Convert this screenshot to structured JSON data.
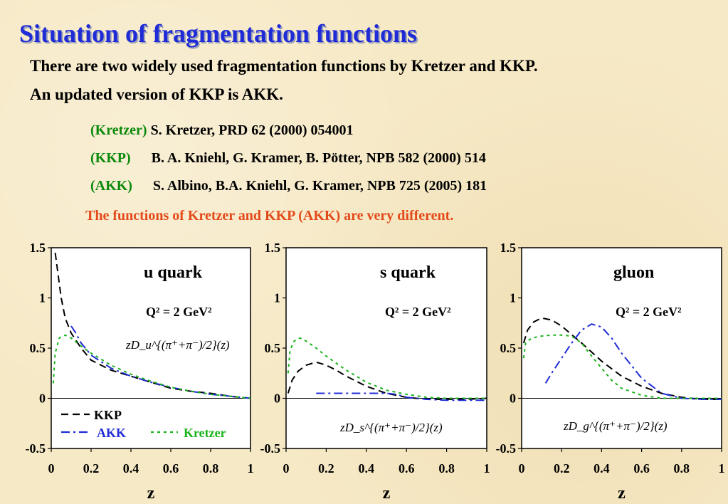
{
  "slide": {
    "title": "Situation of fragmentation functions",
    "intro_line1": "There are two widely used fragmentation functions by Kretzer and KKP.",
    "intro_line2": "An updated version of KKP is AKK.",
    "references": [
      {
        "key": "(Kretzer)",
        "text": "S. Kretzer, PRD 62 (2000) 054001"
      },
      {
        "key": "(KKP)",
        "text": "B. A. Kniehl, G. Kramer, B. Pötter, NPB 582 (2000) 514"
      },
      {
        "key": "(AKK)",
        "text": "S. Albino, B.A. Kniehl, G. Kramer, NPB 725 (2005) 181"
      }
    ],
    "note": "The functions of Kretzer and KKP (AKK) are very different."
  },
  "colors": {
    "kkp": "#000000",
    "akk": "#1f2bd6",
    "kretzer": "#19b319",
    "note": "#e34a1a",
    "title": "#1f2bd6"
  },
  "chart_data": [
    {
      "type": "line",
      "panel_label": "u quark",
      "scale_label": "Q² = 2 GeV²",
      "function_label": "zD_u^{(π⁺+π⁻)/2}(z)",
      "xlabel": "z",
      "xlim": [
        0,
        1
      ],
      "ylim": [
        -0.5,
        1.5
      ],
      "xticks": [
        "0",
        "0.2",
        "0.4",
        "0.6",
        "0.8",
        "1"
      ],
      "yticks": [
        "1.5",
        "1",
        "0.5",
        "0",
        "-0.5"
      ],
      "legend": [
        {
          "series": "KKP",
          "label": "KKP"
        },
        {
          "series": "AKK",
          "label": "AKK"
        },
        {
          "series": "Kretzer",
          "label": "Kretzer"
        }
      ],
      "series": [
        {
          "name": "KKP",
          "style": "dashed",
          "x": [
            0.02,
            0.03,
            0.04,
            0.05,
            0.07,
            0.1,
            0.15,
            0.2,
            0.3,
            0.4,
            0.5,
            0.6,
            0.7,
            0.8,
            0.9,
            1.0
          ],
          "y": [
            1.45,
            1.3,
            1.15,
            1.0,
            0.8,
            0.65,
            0.5,
            0.38,
            0.28,
            0.22,
            0.16,
            0.1,
            0.07,
            0.05,
            0.02,
            0.0
          ]
        },
        {
          "name": "AKK",
          "style": "dashdot",
          "x": [
            0.1,
            0.12,
            0.15,
            0.2,
            0.3,
            0.4,
            0.5,
            0.6,
            0.7,
            0.8,
            0.9,
            1.0
          ],
          "y": [
            0.72,
            0.66,
            0.55,
            0.43,
            0.3,
            0.22,
            0.16,
            0.11,
            0.07,
            0.04,
            0.02,
            0.0
          ]
        },
        {
          "name": "Kretzer",
          "style": "dotted",
          "x": [
            0.01,
            0.02,
            0.04,
            0.07,
            0.1,
            0.15,
            0.2,
            0.3,
            0.4,
            0.5,
            0.6,
            0.7,
            0.8,
            0.9,
            1.0
          ],
          "y": [
            0.15,
            0.45,
            0.6,
            0.63,
            0.6,
            0.52,
            0.45,
            0.33,
            0.24,
            0.17,
            0.11,
            0.07,
            0.04,
            0.02,
            0.0
          ]
        }
      ]
    },
    {
      "type": "line",
      "panel_label": "s quark",
      "scale_label": "Q² = 2 GeV²",
      "function_label": "zD_s^{(π⁺+π⁻)/2}(z)",
      "xlabel": "z",
      "xlim": [
        0,
        1
      ],
      "ylim": [
        -0.5,
        1.5
      ],
      "xticks": [
        "0",
        "0.2",
        "0.4",
        "0.6",
        "0.8",
        "1"
      ],
      "yticks": [
        "1.5",
        "1",
        "0.5",
        "0",
        "-0.5"
      ],
      "series": [
        {
          "name": "KKP",
          "style": "dashed",
          "x": [
            0.01,
            0.03,
            0.06,
            0.1,
            0.15,
            0.2,
            0.25,
            0.3,
            0.4,
            0.5,
            0.6,
            0.7,
            0.8,
            0.9,
            1.0
          ],
          "y": [
            0.05,
            0.18,
            0.27,
            0.33,
            0.36,
            0.33,
            0.28,
            0.22,
            0.12,
            0.05,
            0.01,
            -0.01,
            -0.01,
            -0.01,
            0.0
          ]
        },
        {
          "name": "AKK",
          "style": "dashdot",
          "x": [
            0.15,
            0.2,
            0.3,
            0.4,
            0.5,
            0.55,
            0.6,
            0.7,
            0.8,
            0.9,
            1.0
          ],
          "y": [
            0.05,
            0.05,
            0.05,
            0.05,
            0.05,
            0.04,
            0.01,
            -0.01,
            -0.02,
            -0.02,
            -0.02
          ]
        },
        {
          "name": "Kretzer",
          "style": "dotted",
          "x": [
            0.01,
            0.02,
            0.04,
            0.07,
            0.1,
            0.15,
            0.2,
            0.3,
            0.4,
            0.5,
            0.6,
            0.7,
            0.8,
            0.9,
            1.0
          ],
          "y": [
            0.25,
            0.48,
            0.57,
            0.6,
            0.57,
            0.5,
            0.42,
            0.28,
            0.16,
            0.08,
            0.04,
            0.01,
            0.0,
            0.0,
            0.0
          ]
        }
      ]
    },
    {
      "type": "line",
      "panel_label": "gluon",
      "scale_label": "Q² = 2 GeV²",
      "function_label": "zD_g^{(π⁺+π⁻)/2}(z)",
      "xlabel": "z",
      "xlim": [
        0,
        1
      ],
      "ylim": [
        -0.5,
        1.5
      ],
      "xticks": [
        "0",
        "0.2",
        "0.4",
        "0.6",
        "0.8",
        "1"
      ],
      "yticks": [
        "1.5",
        "1",
        "0.5",
        "0",
        "-0.5"
      ],
      "series": [
        {
          "name": "KKP",
          "style": "dashed",
          "x": [
            0.01,
            0.03,
            0.06,
            0.1,
            0.15,
            0.2,
            0.3,
            0.4,
            0.5,
            0.6,
            0.7,
            0.8,
            0.9,
            1.0
          ],
          "y": [
            0.55,
            0.68,
            0.76,
            0.8,
            0.78,
            0.72,
            0.55,
            0.37,
            0.22,
            0.12,
            0.05,
            0.01,
            -0.01,
            -0.01
          ]
        },
        {
          "name": "AKK",
          "style": "dashdot",
          "x": [
            0.12,
            0.15,
            0.2,
            0.25,
            0.3,
            0.35,
            0.4,
            0.45,
            0.5,
            0.6,
            0.7,
            0.8,
            0.9,
            1.0
          ],
          "y": [
            0.15,
            0.25,
            0.4,
            0.55,
            0.68,
            0.74,
            0.71,
            0.6,
            0.45,
            0.2,
            0.05,
            0.0,
            -0.01,
            -0.01
          ]
        },
        {
          "name": "Kretzer",
          "style": "dotted",
          "x": [
            0.01,
            0.02,
            0.05,
            0.1,
            0.15,
            0.2,
            0.25,
            0.3,
            0.35,
            0.4,
            0.45,
            0.5,
            0.6,
            0.7,
            0.8,
            0.9,
            1.0
          ],
          "y": [
            0.4,
            0.55,
            0.6,
            0.62,
            0.63,
            0.63,
            0.62,
            0.55,
            0.42,
            0.3,
            0.18,
            0.1,
            0.03,
            0.0,
            0.0,
            0.0,
            0.0
          ]
        }
      ]
    }
  ]
}
